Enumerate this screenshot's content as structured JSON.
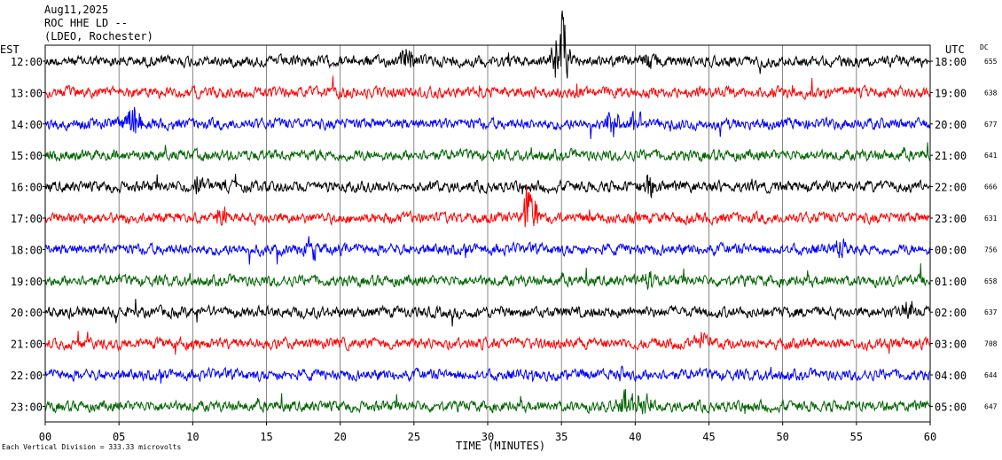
{
  "header": {
    "date": "Aug11,2025",
    "station": "ROC HHE LD --",
    "source": "(LDEO, Rochester)"
  },
  "left_title": "EST",
  "right_title": "UTC",
  "dc_title": "DC",
  "footnote": "Each Vertical Division = 333.33 microvolts",
  "chart_data": {
    "type": "line",
    "title": "ROC HHE LD --",
    "xlabel": "TIME (MINUTES)",
    "ylabel": "",
    "xlim": [
      0,
      60
    ],
    "x_ticks": [
      "00",
      "05",
      "10",
      "15",
      "20",
      "25",
      "30",
      "35",
      "40",
      "45",
      "50",
      "55",
      "60"
    ],
    "grid": "vertical lines every 5 minutes",
    "colors_cycle": [
      "#000000",
      "#ff0000",
      "#0000ff",
      "#006400"
    ],
    "rows": [
      {
        "est": "12:00",
        "utc": "18:00",
        "dc": "655",
        "color": "#000000",
        "events": [
          {
            "minute": 24.5,
            "amp": 0.6
          },
          {
            "minute": 41.0,
            "amp": 0.5
          },
          {
            "minute": 35.0,
            "amp": 2.5
          }
        ]
      },
      {
        "est": "13:00",
        "utc": "19:00",
        "dc": "638",
        "color": "#ff0000",
        "events": []
      },
      {
        "est": "14:00",
        "utc": "20:00",
        "dc": "677",
        "color": "#0000ff",
        "events": [
          {
            "minute": 6.0,
            "amp": 1.0
          },
          {
            "minute": 38.5,
            "amp": 0.7
          },
          {
            "minute": 40.0,
            "amp": 0.6
          }
        ]
      },
      {
        "est": "15:00",
        "utc": "21:00",
        "dc": "641",
        "color": "#006400",
        "events": []
      },
      {
        "est": "16:00",
        "utc": "22:00",
        "dc": "666",
        "color": "#000000",
        "events": [
          {
            "minute": 10.5,
            "amp": 0.6
          },
          {
            "minute": 41.0,
            "amp": 0.7
          }
        ]
      },
      {
        "est": "17:00",
        "utc": "23:00",
        "dc": "631",
        "color": "#ff0000",
        "events": [
          {
            "minute": 12.0,
            "amp": 0.6
          },
          {
            "minute": 32.8,
            "amp": 1.6
          }
        ]
      },
      {
        "est": "18:00",
        "utc": "00:00",
        "dc": "756",
        "color": "#0000ff",
        "events": [
          {
            "minute": 18.0,
            "amp": 0.6
          },
          {
            "minute": 54.0,
            "amp": 0.6
          }
        ]
      },
      {
        "est": "19:00",
        "utc": "01:00",
        "dc": "658",
        "color": "#006400",
        "events": [
          {
            "minute": 41.0,
            "amp": 0.6
          }
        ]
      },
      {
        "est": "20:00",
        "utc": "02:00",
        "dc": "637",
        "color": "#000000",
        "events": [
          {
            "minute": 58.5,
            "amp": 0.6
          }
        ]
      },
      {
        "est": "21:00",
        "utc": "03:00",
        "dc": "708",
        "color": "#ff0000",
        "events": [
          {
            "minute": 44.5,
            "amp": 0.5
          }
        ]
      },
      {
        "est": "22:00",
        "utc": "04:00",
        "dc": "644",
        "color": "#0000ff",
        "events": [
          {
            "minute": 39.0,
            "amp": 0.4
          }
        ]
      },
      {
        "est": "23:00",
        "utc": "05:00",
        "dc": "647",
        "color": "#006400",
        "events": [
          {
            "minute": 39.5,
            "amp": 0.9
          },
          {
            "minute": 40.5,
            "amp": 0.8
          }
        ]
      }
    ]
  }
}
